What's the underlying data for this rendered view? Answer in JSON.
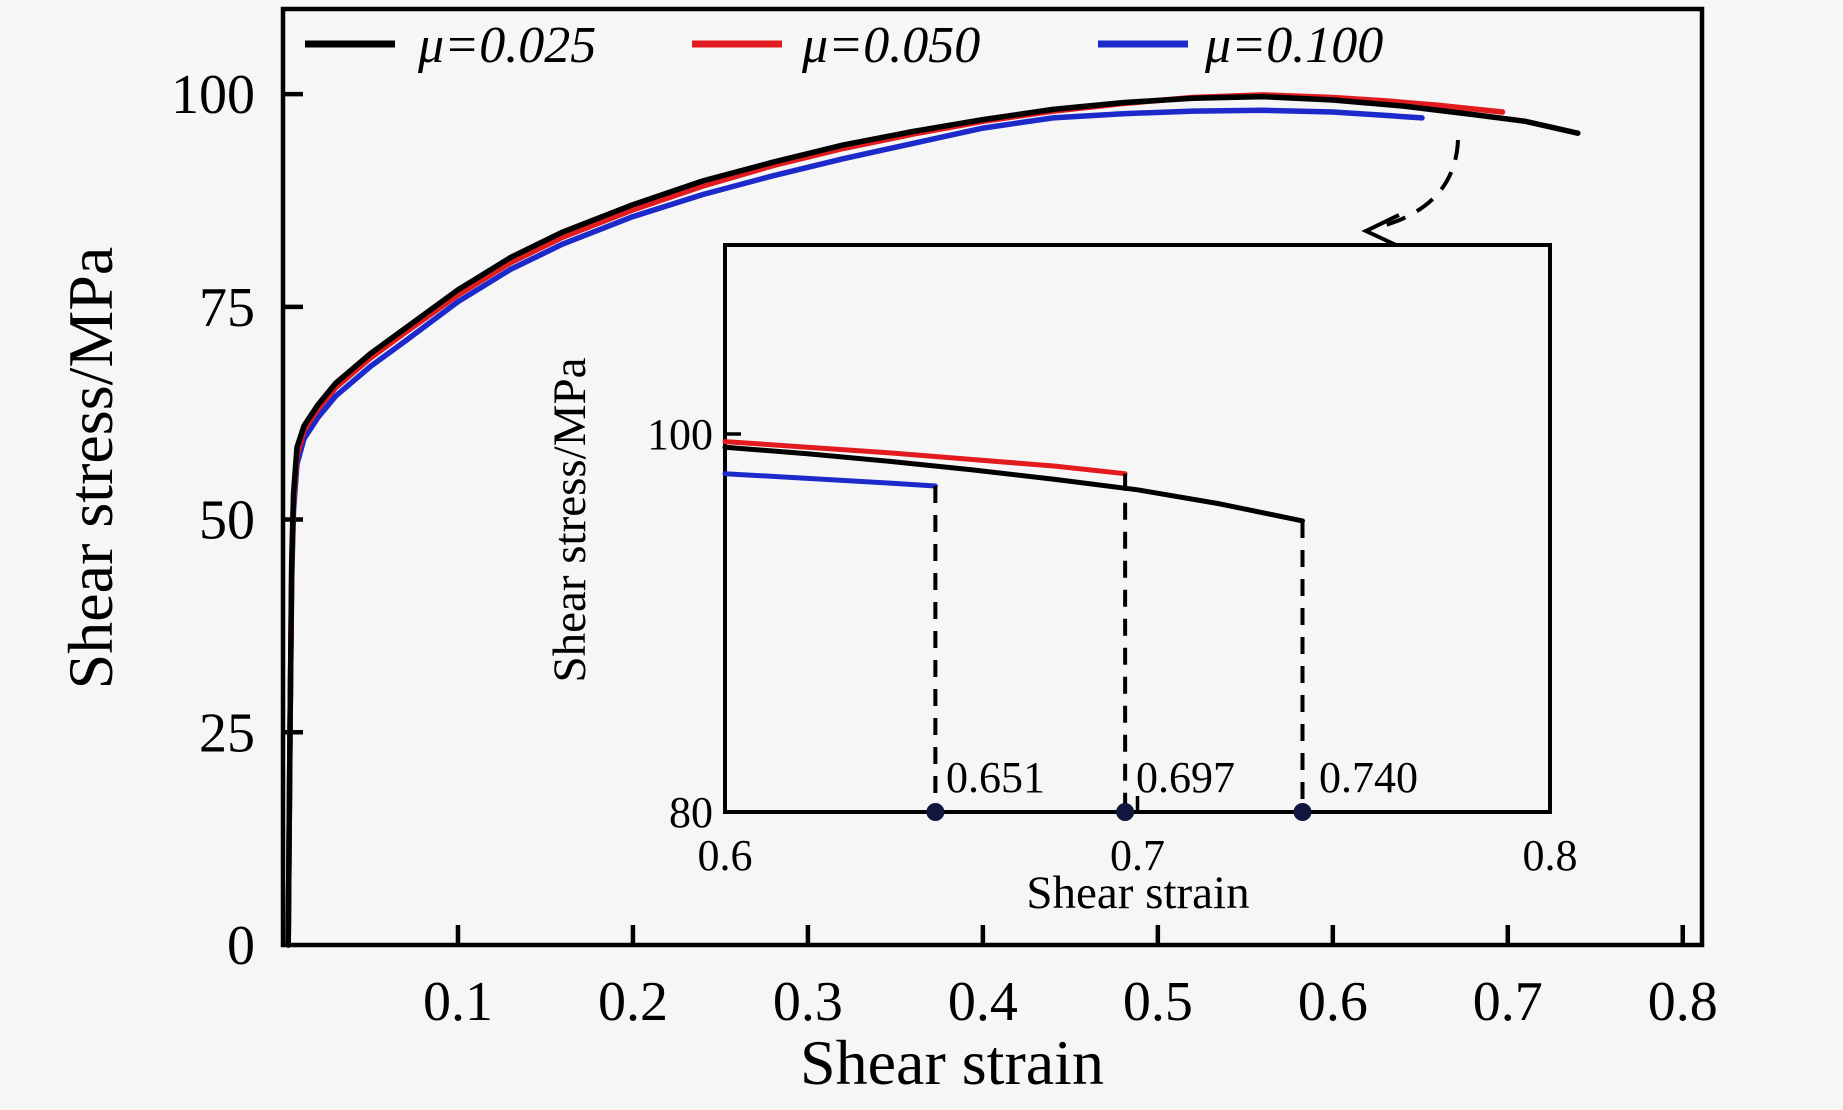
{
  "figure": {
    "background": "#f6f6f6",
    "legend": {
      "position": "top-left-inside",
      "items": [
        {
          "label": "μ=0.025",
          "color": "#000000"
        },
        {
          "label": "μ=0.050",
          "color": "#e21b1e"
        },
        {
          "label": "μ=0.100",
          "color": "#1d2acb"
        }
      ]
    }
  },
  "chart_data": [
    {
      "id": "main",
      "type": "line",
      "title": "",
      "xlabel": "Shear strain",
      "ylabel": "Shear stress/MPa",
      "xlim": [
        0,
        0.811
      ],
      "ylim": [
        0,
        110
      ],
      "xticks": [
        0.1,
        0.2,
        0.3,
        0.4,
        0.5,
        0.6,
        0.7,
        0.8
      ],
      "xtick_labels": [
        "0.1",
        "0.2",
        "0.3",
        "0.4",
        "0.5",
        "0.6",
        "0.7",
        "0.8"
      ],
      "yticks": [
        0,
        25,
        50,
        75,
        100
      ],
      "ytick_labels": [
        "0",
        "25",
        "50",
        "75",
        "100"
      ],
      "grid": false,
      "frame": "full-box",
      "series": [
        {
          "name": "μ=0.100",
          "color": "#1d2acb",
          "fracture_strain": 0.651,
          "points": [
            [
              0.003,
              0
            ],
            [
              0.004,
              25
            ],
            [
              0.005,
              43
            ],
            [
              0.006,
              51
            ],
            [
              0.008,
              56.5
            ],
            [
              0.012,
              59.5
            ],
            [
              0.02,
              62
            ],
            [
              0.03,
              64.5
            ],
            [
              0.05,
              68
            ],
            [
              0.07,
              71
            ],
            [
              0.1,
              75.6
            ],
            [
              0.13,
              79.4
            ],
            [
              0.16,
              82.4
            ],
            [
              0.2,
              85.6
            ],
            [
              0.24,
              88.2
            ],
            [
              0.28,
              90.4
            ],
            [
              0.32,
              92.4
            ],
            [
              0.36,
              94.2
            ],
            [
              0.4,
              96.0
            ],
            [
              0.44,
              97.2
            ],
            [
              0.48,
              97.7
            ],
            [
              0.52,
              98.0
            ],
            [
              0.56,
              98.1
            ],
            [
              0.6,
              97.9
            ],
            [
              0.63,
              97.5
            ],
            [
              0.651,
              97.2
            ]
          ]
        },
        {
          "name": "μ=0.050",
          "color": "#e21b1e",
          "fracture_strain": 0.697,
          "points": [
            [
              0.003,
              0
            ],
            [
              0.004,
              25
            ],
            [
              0.005,
              44
            ],
            [
              0.006,
              52
            ],
            [
              0.008,
              57.5
            ],
            [
              0.012,
              60.5
            ],
            [
              0.02,
              63
            ],
            [
              0.03,
              65.5
            ],
            [
              0.05,
              69
            ],
            [
              0.07,
              72
            ],
            [
              0.1,
              76.4
            ],
            [
              0.13,
              80.2
            ],
            [
              0.16,
              83.2
            ],
            [
              0.2,
              86.4
            ],
            [
              0.24,
              89.2
            ],
            [
              0.28,
              91.6
            ],
            [
              0.32,
              93.6
            ],
            [
              0.36,
              95.3
            ],
            [
              0.4,
              96.8
            ],
            [
              0.44,
              98.0
            ],
            [
              0.48,
              98.9
            ],
            [
              0.52,
              99.6
            ],
            [
              0.56,
              99.9
            ],
            [
              0.6,
              99.6
            ],
            [
              0.63,
              99.2
            ],
            [
              0.66,
              98.7
            ],
            [
              0.697,
              97.9
            ]
          ]
        },
        {
          "name": "μ=0.025",
          "color": "#000000",
          "fracture_strain": 0.74,
          "points": [
            [
              0.003,
              0
            ],
            [
              0.004,
              25
            ],
            [
              0.005,
              45
            ],
            [
              0.006,
              53
            ],
            [
              0.008,
              58.5
            ],
            [
              0.012,
              61
            ],
            [
              0.02,
              63.5
            ],
            [
              0.03,
              66
            ],
            [
              0.05,
              69.5
            ],
            [
              0.07,
              72.5
            ],
            [
              0.1,
              77
            ],
            [
              0.13,
              80.8
            ],
            [
              0.16,
              83.8
            ],
            [
              0.2,
              87
            ],
            [
              0.24,
              89.8
            ],
            [
              0.28,
              92
            ],
            [
              0.32,
              94
            ],
            [
              0.36,
              95.6
            ],
            [
              0.4,
              97
            ],
            [
              0.44,
              98.2
            ],
            [
              0.48,
              99
            ],
            [
              0.52,
              99.5
            ],
            [
              0.56,
              99.7
            ],
            [
              0.6,
              99.3
            ],
            [
              0.64,
              98.6
            ],
            [
              0.68,
              97.6
            ],
            [
              0.71,
              96.8
            ],
            [
              0.74,
              95.4
            ]
          ]
        }
      ]
    },
    {
      "id": "inset",
      "type": "line",
      "title": "",
      "xlabel": "Shear strain",
      "ylabel": "Shear stress/MPa",
      "xlim": [
        0.6,
        0.8
      ],
      "ylim": [
        80,
        110
      ],
      "xticks": [
        0.6,
        0.7,
        0.8
      ],
      "xtick_labels": [
        "0.6",
        "0.7",
        "0.8"
      ],
      "yticks": [
        80,
        100
      ],
      "ytick_labels": [
        "80",
        "100"
      ],
      "grid": false,
      "frame": "full-box",
      "series": [
        {
          "name": "μ=0.100",
          "color": "#1d2acb",
          "points": [
            [
              0.6,
              97.9
            ],
            [
              0.62,
              97.65
            ],
            [
              0.64,
              97.4
            ],
            [
              0.651,
              97.25
            ]
          ]
        },
        {
          "name": "μ=0.050",
          "color": "#e21b1e",
          "points": [
            [
              0.6,
              99.6
            ],
            [
              0.62,
              99.3
            ],
            [
              0.64,
              99.0
            ],
            [
              0.66,
              98.65
            ],
            [
              0.68,
              98.3
            ],
            [
              0.697,
              97.9
            ]
          ]
        },
        {
          "name": "μ=0.025",
          "color": "#000000",
          "points": [
            [
              0.6,
              99.3
            ],
            [
              0.62,
              98.95
            ],
            [
              0.64,
              98.55
            ],
            [
              0.66,
              98.1
            ],
            [
              0.68,
              97.6
            ],
            [
              0.7,
              97.05
            ],
            [
              0.72,
              96.3
            ],
            [
              0.74,
              95.4
            ]
          ]
        }
      ],
      "annotations": [
        {
          "label": "0.651",
          "x": 0.651,
          "marker_y": 80
        },
        {
          "label": "0.697",
          "x": 0.697,
          "marker_y": 80
        },
        {
          "label": "0.740",
          "x": 0.74,
          "marker_y": 80
        }
      ],
      "marker_color": "#10163d",
      "dropline_style": "dashed"
    }
  ],
  "callout": {
    "type": "dashed-curved-arrow",
    "meaning": "points from curve fracture region to inset detail view"
  }
}
